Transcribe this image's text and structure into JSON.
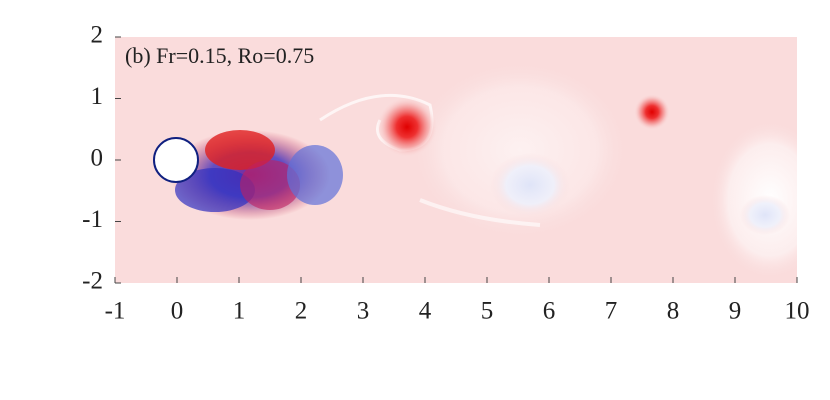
{
  "chart_data": {
    "type": "field",
    "annotation": "(b) Fr=0.15, Ro=0.75",
    "xlim": [
      -1,
      10
    ],
    "xticks": [
      -1,
      0,
      1,
      2,
      3,
      4,
      5,
      6,
      7,
      8,
      9,
      10
    ],
    "ylim": [
      -2,
      2
    ],
    "yticks": [
      -2,
      -1,
      0,
      1,
      2
    ],
    "background": "#fadcdc"
  }
}
